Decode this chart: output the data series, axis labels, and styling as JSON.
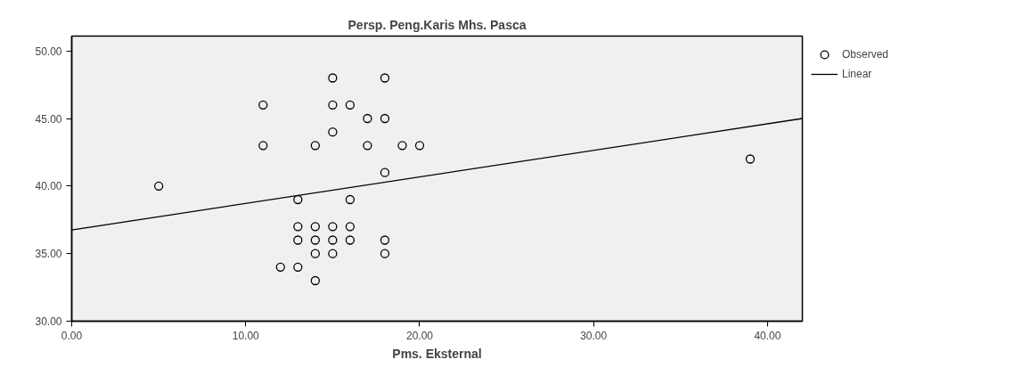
{
  "chart_data": {
    "type": "scatter",
    "title": "Persp. Peng.Karis Mhs. Pasca",
    "xlabel": "Pms. Eksternal",
    "xlim": [
      0,
      42
    ],
    "xticks": [
      {
        "value": 0,
        "label": "0.00"
      },
      {
        "value": 10,
        "label": "10.00"
      },
      {
        "value": 20,
        "label": "20.00"
      },
      {
        "value": 30,
        "label": "30.00"
      },
      {
        "value": 40,
        "label": "40.00"
      }
    ],
    "ylim": [
      30,
      51.1
    ],
    "yticks": [
      {
        "value": 30,
        "label": "30.00"
      },
      {
        "value": 35,
        "label": "35.00"
      },
      {
        "value": 40,
        "label": "40.00"
      },
      {
        "value": 45,
        "label": "45.00"
      },
      {
        "value": 50,
        "label": "50.00"
      }
    ],
    "grid": false,
    "legend": "top right",
    "series": [
      {
        "name": "Observed",
        "marker": "circle",
        "color": "#000000",
        "x": [
          5,
          11,
          11,
          12,
          13,
          13,
          13,
          13,
          14,
          14,
          14,
          14,
          14,
          15,
          15,
          15,
          15,
          15,
          15,
          16,
          16,
          16,
          16,
          17,
          17,
          18,
          18,
          18,
          18,
          18,
          19,
          20,
          39
        ],
        "values": [
          40,
          46,
          43,
          34,
          39,
          37,
          36,
          34,
          43,
          37,
          36,
          35,
          33,
          48,
          46,
          44,
          37,
          36,
          35,
          46,
          39,
          37,
          36,
          45,
          43,
          48,
          45,
          41,
          36,
          35,
          43,
          43,
          42
        ]
      },
      {
        "name": "Linear",
        "type": "line",
        "color": "#000000",
        "x": [
          0,
          42
        ],
        "values": [
          36.75,
          45.0
        ]
      }
    ]
  }
}
